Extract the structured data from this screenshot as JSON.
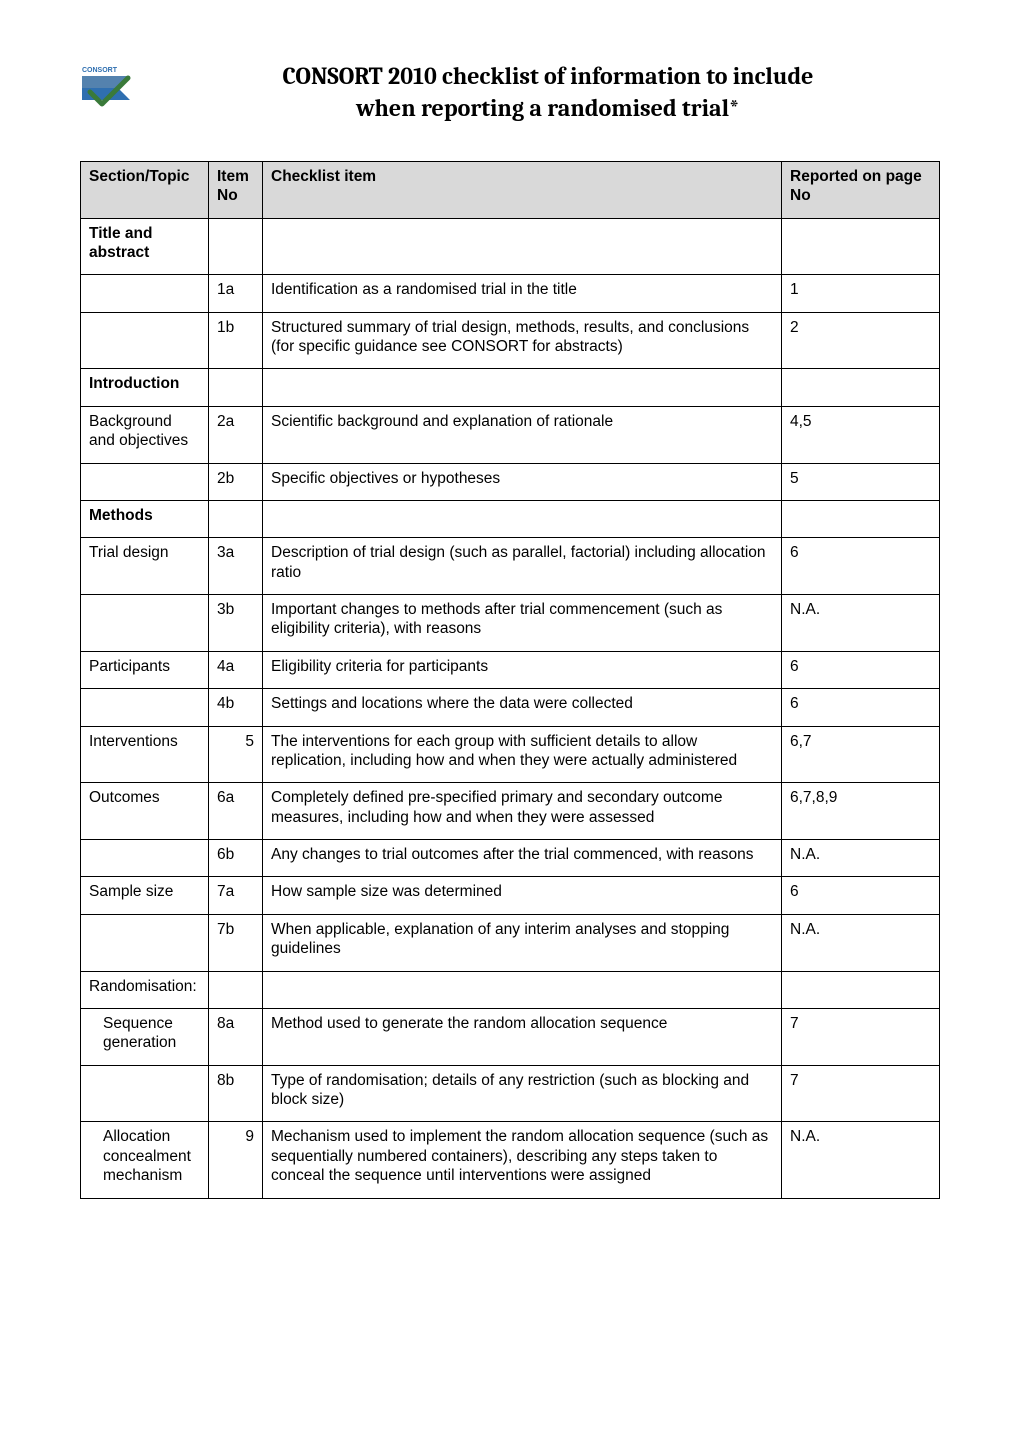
{
  "title_line1": "CONSORT 2010 checklist of information to include",
  "title_line2": "when reporting a randomised trial*",
  "logo": {
    "label_text": "CONSORT",
    "label_color": "#2f6fb0",
    "flag_blue": "#2f6fb0",
    "flag_grey": "#9aa7ad",
    "check_color": "#3a7a3a"
  },
  "columns": {
    "section": "Section/Topic",
    "item": "Item No",
    "checklist": "Checklist item",
    "page": "Reported on page No"
  },
  "rows": [
    {
      "section": "Title and abstract",
      "section_bold": true,
      "item": "",
      "item_align": "left",
      "checklist": "",
      "page": ""
    },
    {
      "section": "",
      "item": "1a",
      "item_align": "left",
      "checklist": "Identification as a randomised trial in the title",
      "page": "1"
    },
    {
      "section": "",
      "item": "1b",
      "item_align": "left",
      "checklist": "Structured summary of trial design, methods, results, and conclusions (for specific guidance see CONSORT for abstracts)",
      "page": "2"
    },
    {
      "section": "Introduction",
      "section_bold": true,
      "item": "",
      "item_align": "left",
      "checklist": "",
      "page": ""
    },
    {
      "section": "Background and objectives",
      "item": "2a",
      "item_align": "left",
      "checklist": "Scientific background and explanation of rationale",
      "page": "4,5"
    },
    {
      "section": "",
      "item": "2b",
      "item_align": "left",
      "checklist": "Specific objectives or hypotheses",
      "page": "5"
    },
    {
      "section": "Methods",
      "section_bold": true,
      "item": "",
      "item_align": "left",
      "checklist": "",
      "page": ""
    },
    {
      "section": "Trial design",
      "item": "3a",
      "item_align": "left",
      "checklist": "Description of trial design (such as parallel, factorial) including allocation ratio",
      "page": "6"
    },
    {
      "section": "",
      "item": "3b",
      "item_align": "left",
      "checklist": "Important changes to methods after trial commencement (such as eligibility criteria), with reasons",
      "page": "N.A."
    },
    {
      "section": "Participants",
      "item": "4a",
      "item_align": "left",
      "checklist": "Eligibility criteria for participants",
      "page": "6"
    },
    {
      "section": "",
      "item": "4b",
      "item_align": "left",
      "checklist": "Settings and locations where the data were collected",
      "page": "6"
    },
    {
      "section": "Interventions",
      "item": "5",
      "item_align": "right",
      "checklist": "The interventions for each group with sufficient details to allow replication, including how and when they were actually administered",
      "page": "6,7"
    },
    {
      "section": "Outcomes",
      "item": "6a",
      "item_align": "left",
      "checklist": "Completely defined pre-specified primary and secondary outcome measures, including how and when they were assessed",
      "page": "6,7,8,9"
    },
    {
      "section": "",
      "item": "6b",
      "item_align": "left",
      "checklist": "Any changes to trial outcomes after the trial commenced, with reasons",
      "page": "N.A."
    },
    {
      "section": "Sample size",
      "item": "7a",
      "item_align": "left",
      "checklist": "How sample size was determined",
      "page": "6"
    },
    {
      "section": "",
      "item": "7b",
      "item_align": "left",
      "checklist": "When applicable, explanation of any interim analyses and stopping guidelines",
      "page": "N.A."
    },
    {
      "section": "Randomisation:",
      "item": "",
      "item_align": "left",
      "checklist": "",
      "page": ""
    },
    {
      "section": " Sequence generation",
      "section_indent": true,
      "item": "8a",
      "item_align": "left",
      "checklist": "Method used to generate the random allocation sequence",
      "page": "7"
    },
    {
      "section": "",
      "item": "8b",
      "item_align": "left",
      "checklist": "Type of randomisation; details of any restriction (such as blocking and block size)",
      "page": "7"
    },
    {
      "section": " Allocation concealment mechanism",
      "section_indent": true,
      "item": "9",
      "item_align": "right",
      "checklist": "Mechanism used to implement the random allocation sequence (such as sequentially numbered containers), describing any steps taken to conceal the sequence until interventions were assigned",
      "page": "N.A."
    }
  ],
  "style": {
    "page_bg": "#ffffff",
    "header_bg": "#d9d9d9",
    "border_color": "#000000",
    "body_font": "Arial",
    "title_font": "Cambria",
    "title_fontsize_pt": 18,
    "cell_fontsize_pt": 11.5
  }
}
